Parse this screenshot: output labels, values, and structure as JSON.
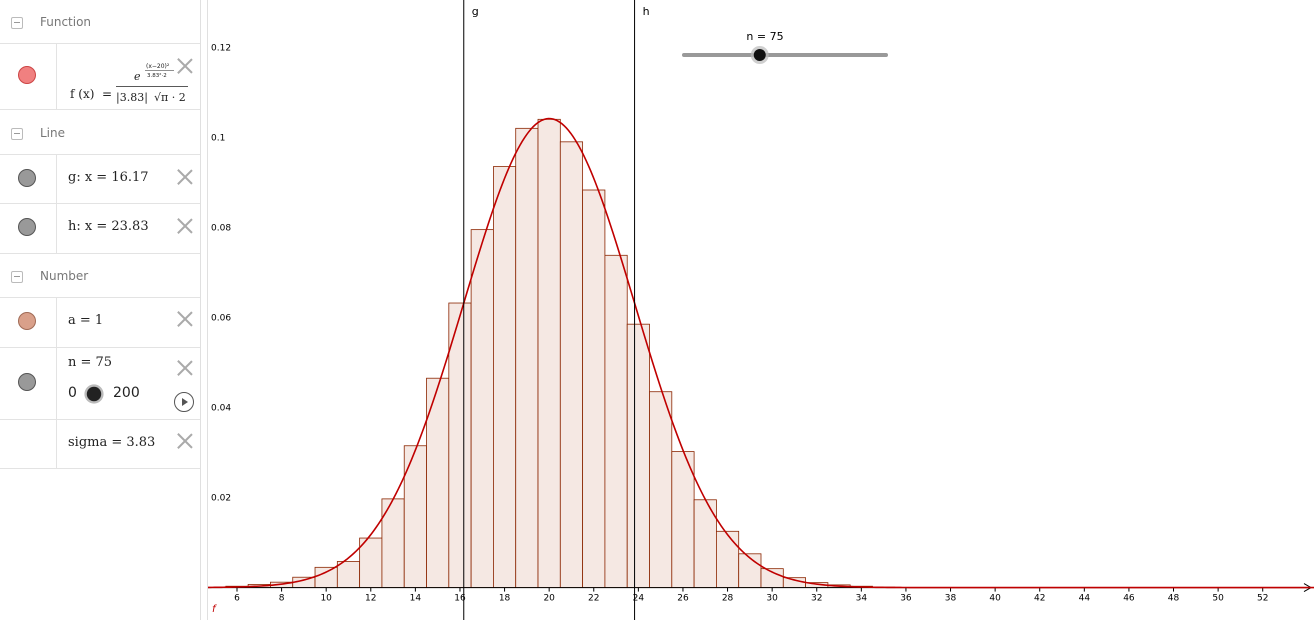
{
  "algebra": {
    "categories": {
      "function": "Function",
      "line": "Line",
      "number": "Number"
    },
    "function_f": {
      "lhs": "f (x)",
      "eq": "=",
      "num_e": "e",
      "exp_top": "(x−20)²",
      "exp_bottom": "3.83²·2",
      "den_abs": "|3.83|",
      "den_sqrt": "√π · 2",
      "color": "#f08080"
    },
    "line_g": {
      "text": "g: x = 16.17",
      "color": "#999999"
    },
    "line_h": {
      "text": "h: x = 23.83",
      "color": "#999999"
    },
    "number_a": {
      "text": "a = 1",
      "color": "#d9a08a"
    },
    "number_n": {
      "text": "n = 75",
      "min": "0",
      "max": "200",
      "value": 75,
      "color": "#999999"
    },
    "number_sigma": {
      "text": "sigma = 3.83"
    }
  },
  "graph": {
    "line_labels": {
      "g": "g",
      "h": "h"
    },
    "function_label": "f",
    "slider": {
      "label": "n = 75",
      "value": 75,
      "min": 0,
      "max": 200
    },
    "colors": {
      "curve": "#c00000",
      "bar_fill": "#f5e8e3",
      "bar_stroke": "#8b2500",
      "axis": "#000000",
      "line": "#000000"
    },
    "x_ticks": [
      6,
      8,
      10,
      12,
      14,
      16,
      18,
      20,
      22,
      24,
      26,
      28,
      30,
      32,
      34,
      36,
      38,
      40,
      42,
      44,
      46,
      48,
      50,
      52
    ],
    "y_ticks": [
      {
        "v": 0.02,
        "t": "0.02"
      },
      {
        "v": 0.04,
        "t": "0.04"
      },
      {
        "v": 0.06,
        "t": "0.06"
      },
      {
        "v": 0.08,
        "t": "0.08"
      },
      {
        "v": 0.1,
        "t": "0.1"
      },
      {
        "v": 0.12,
        "t": "0.12"
      }
    ]
  },
  "chart_data": {
    "type": "bar",
    "mean": 20,
    "sigma": 3.83,
    "line_g_x": 16.17,
    "line_h_x": 23.83,
    "bars_x": [
      6,
      7,
      8,
      9,
      10,
      11,
      12,
      13,
      14,
      15,
      16,
      17,
      18,
      19,
      20,
      21,
      22,
      23,
      24,
      25,
      26,
      27,
      28,
      29,
      30,
      31,
      32,
      33,
      34,
      35
    ],
    "bars_y": [
      0.0003,
      0.0007,
      0.0012,
      0.0023,
      0.0045,
      0.0058,
      0.011,
      0.0197,
      0.0315,
      0.0465,
      0.0632,
      0.0795,
      0.0935,
      0.102,
      0.104,
      0.099,
      0.0883,
      0.0738,
      0.0585,
      0.0435,
      0.0302,
      0.0195,
      0.0125,
      0.0075,
      0.0042,
      0.0022,
      0.0011,
      0.0006,
      0.0003,
      0.0001
    ],
    "xlim": [
      4.7,
      54.3
    ],
    "ylim": [
      -0.0072,
      0.1305
    ]
  }
}
